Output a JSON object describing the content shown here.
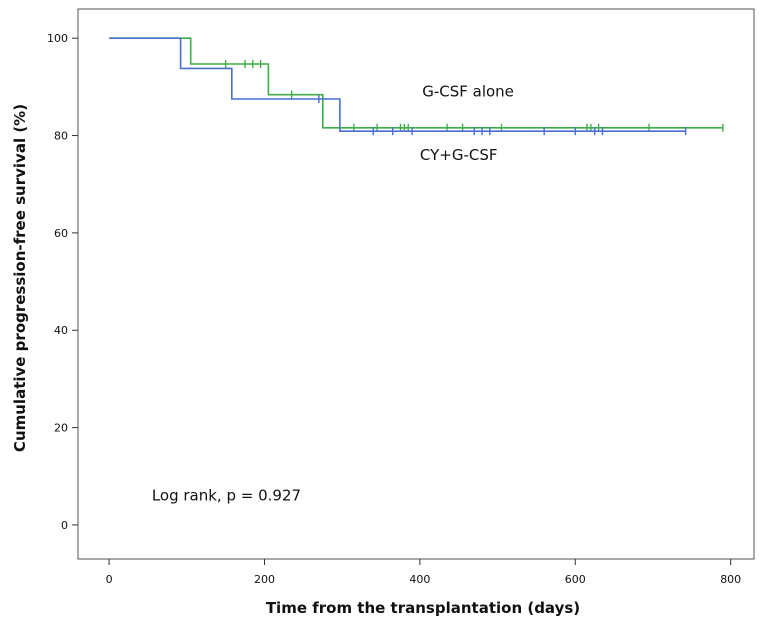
{
  "chart_data": {
    "type": "line",
    "subtype": "kaplan-meier",
    "title": "",
    "xlabel": "Time from the transplantation (days)",
    "ylabel": "Cumulative progression-free survival (%)",
    "xlim": [
      -40,
      830
    ],
    "ylim": [
      -7,
      106
    ],
    "x_ticks": [
      0,
      200,
      400,
      600,
      800
    ],
    "x_tick_labels": [
      "0",
      "200",
      "400",
      "600",
      "800"
    ],
    "y_ticks": [
      0,
      20,
      40,
      60,
      80,
      100
    ],
    "y_tick_labels": [
      "0",
      "20",
      "40",
      "60",
      "80",
      "100"
    ],
    "grid": false,
    "legend": "none",
    "series": [
      {
        "name": "G-CSF alone",
        "color": "#3fae49",
        "steps": [
          [
            0,
            100
          ],
          [
            105,
            100
          ],
          [
            105,
            94.7
          ],
          [
            205,
            94.7
          ],
          [
            205,
            88.4
          ],
          [
            275,
            88.4
          ],
          [
            275,
            81.6
          ],
          [
            790,
            81.6
          ]
        ],
        "censored": [
          [
            150,
            94.7
          ],
          [
            175,
            94.7
          ],
          [
            185,
            94.7
          ],
          [
            195,
            94.7
          ],
          [
            235,
            88.4
          ],
          [
            315,
            81.6
          ],
          [
            345,
            81.6
          ],
          [
            375,
            81.6
          ],
          [
            380,
            81.6
          ],
          [
            385,
            81.6
          ],
          [
            435,
            81.6
          ],
          [
            455,
            81.6
          ],
          [
            505,
            81.6
          ],
          [
            615,
            81.6
          ],
          [
            620,
            81.6
          ],
          [
            630,
            81.6
          ],
          [
            695,
            81.6
          ],
          [
            790,
            81.6
          ]
        ]
      },
      {
        "name": "CY+G-CSF",
        "color": "#4a6fd0",
        "steps": [
          [
            0,
            100
          ],
          [
            92,
            100
          ],
          [
            92,
            93.8
          ],
          [
            158,
            93.8
          ],
          [
            158,
            87.5
          ],
          [
            297,
            87.5
          ],
          [
            297,
            80.9
          ],
          [
            742,
            80.9
          ]
        ],
        "censored": [
          [
            270,
            87.5
          ],
          [
            340,
            80.9
          ],
          [
            365,
            80.9
          ],
          [
            390,
            80.9
          ],
          [
            470,
            80.9
          ],
          [
            480,
            80.9
          ],
          [
            490,
            80.9
          ],
          [
            560,
            80.9
          ],
          [
            600,
            80.9
          ],
          [
            625,
            80.9
          ],
          [
            635,
            80.9
          ],
          [
            742,
            80.9
          ]
        ]
      }
    ],
    "annotations": [
      {
        "text": "G-CSF alone",
        "x": 462,
        "y": 88
      },
      {
        "text": "CY+G-CSF",
        "x": 450,
        "y": 75
      },
      {
        "text": "Log rank, p = 0.927",
        "x": 55,
        "y": 5
      }
    ]
  }
}
